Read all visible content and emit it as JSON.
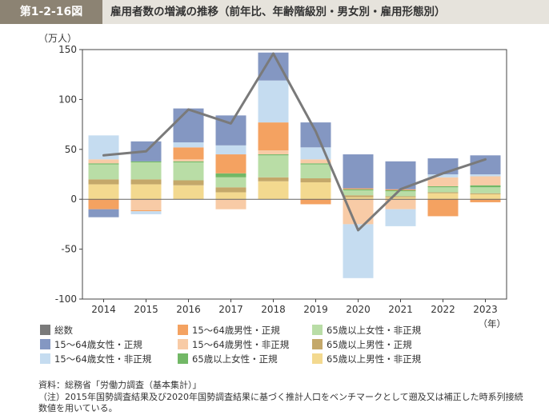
{
  "header": {
    "figure_number": "第1-2-16図",
    "title": "雇用者数の増減の推移（前年比、年齢階級別・男女別・雇用形態別）"
  },
  "chart_data": {
    "type": "bar",
    "stacked": true,
    "ylabel": "（万人）",
    "xlabel": "（年）",
    "ylim": [
      -100,
      150
    ],
    "yticks": [
      150,
      100,
      50,
      0,
      -50,
      -100
    ],
    "categories": [
      "2014",
      "2015",
      "2016",
      "2017",
      "2018",
      "2019",
      "2020",
      "2021",
      "2022",
      "2023"
    ],
    "series": [
      {
        "name": "65歳以上男性・非正規",
        "color": "#f3d98f",
        "values": [
          15,
          15,
          14,
          7,
          18,
          17,
          2,
          2,
          6,
          5
        ]
      },
      {
        "name": "65歳以上男性・正規",
        "color": "#c4a86a",
        "values": [
          5,
          5,
          5,
          5,
          4,
          4,
          2,
          1,
          1,
          1
        ]
      },
      {
        "name": "65歳以上女性・非正規",
        "color": "#b9dda6",
        "values": [
          15,
          17,
          18,
          10,
          22,
          14,
          5,
          5,
          5,
          6
        ]
      },
      {
        "name": "65歳以上女性・正規",
        "color": "#72b866",
        "values": [
          1,
          1,
          1,
          4,
          1,
          1,
          1,
          1,
          1,
          2
        ]
      },
      {
        "name": "15～64歳男性・非正規",
        "color": "#f8cba6",
        "values": [
          4,
          -11,
          2,
          -10,
          4,
          4,
          -25,
          -10,
          9,
          9
        ]
      },
      {
        "name": "15～64歳男性・正規",
        "color": "#f4a261",
        "values": [
          -10,
          -1,
          12,
          19,
          28,
          -5,
          1,
          1,
          -17,
          -3
        ]
      },
      {
        "name": "15～64歳女性・非正規",
        "color": "#c5dcf0",
        "values": [
          24,
          -3,
          5,
          9,
          42,
          12,
          -54,
          -17,
          3,
          2
        ]
      },
      {
        "name": "15～64歳女性・正規",
        "color": "#8497c2",
        "values": [
          -8,
          20,
          34,
          30,
          28,
          25,
          34,
          28,
          16,
          19
        ]
      }
    ],
    "total": {
      "name": "総数",
      "color": "#7a7a7a",
      "values": [
        44,
        48,
        90,
        76,
        146,
        68,
        -31,
        10,
        26,
        40
      ]
    },
    "grid": false,
    "legend_position": "bottom"
  },
  "legend": [
    {
      "label": "総数",
      "color": "#7a7a7a"
    },
    {
      "label": "15～64歳女性・正規",
      "color": "#8497c2"
    },
    {
      "label": "15～64歳女性・非正規",
      "color": "#c5dcf0"
    },
    {
      "label": "15～64歳男性・正規",
      "color": "#f4a261"
    },
    {
      "label": "15～64歳男性・非正規",
      "color": "#f8cba6"
    },
    {
      "label": "65歳以上女性・正規",
      "color": "#72b866"
    },
    {
      "label": "65歳以上女性・非正規",
      "color": "#b9dda6"
    },
    {
      "label": "65歳以上男性・正規",
      "color": "#c4a86a"
    },
    {
      "label": "65歳以上男性・非正規",
      "color": "#f3d98f"
    }
  ],
  "source": {
    "line1": "資料：総務省「労働力調査（基本集計）」",
    "line2": "（注）2015年国勢調査結果及び2020年国勢調査結果に基づく推計人口をベンチマークとして遡及又は補正した時系列接続",
    "line3": "数値を用いている。"
  }
}
